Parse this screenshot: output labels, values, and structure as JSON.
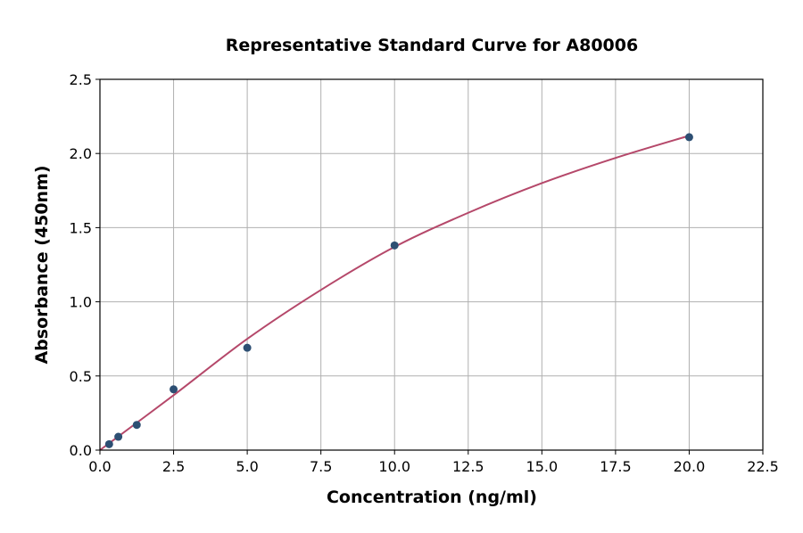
{
  "chart_data": {
    "type": "scatter",
    "title": "Representative Standard Curve for A80006",
    "xlabel": "Concentration (ng/ml)",
    "ylabel": "Absorbance (450nm)",
    "xlim": [
      0,
      22.5
    ],
    "ylim": [
      0,
      2.5
    ],
    "xticks": [
      "0.0",
      "2.5",
      "5.0",
      "7.5",
      "10.0",
      "12.5",
      "15.0",
      "17.5",
      "20.0",
      "22.5"
    ],
    "yticks": [
      "0.0",
      "0.5",
      "1.0",
      "1.5",
      "2.0",
      "2.5"
    ],
    "grid": true,
    "points": {
      "x": [
        0.3125,
        0.625,
        1.25,
        2.5,
        5,
        10,
        20
      ],
      "y": [
        0.04,
        0.09,
        0.17,
        0.41,
        0.69,
        1.38,
        2.11
      ],
      "color": "#2d4f73"
    },
    "fit_curve": {
      "x": [
        0,
        2.5,
        5,
        7.5,
        10,
        12.5,
        15,
        17.5,
        20
      ],
      "y": [
        0.0,
        0.37,
        0.75,
        1.08,
        1.37,
        1.6,
        1.8,
        1.97,
        2.12
      ],
      "color": "#b5486a"
    }
  }
}
